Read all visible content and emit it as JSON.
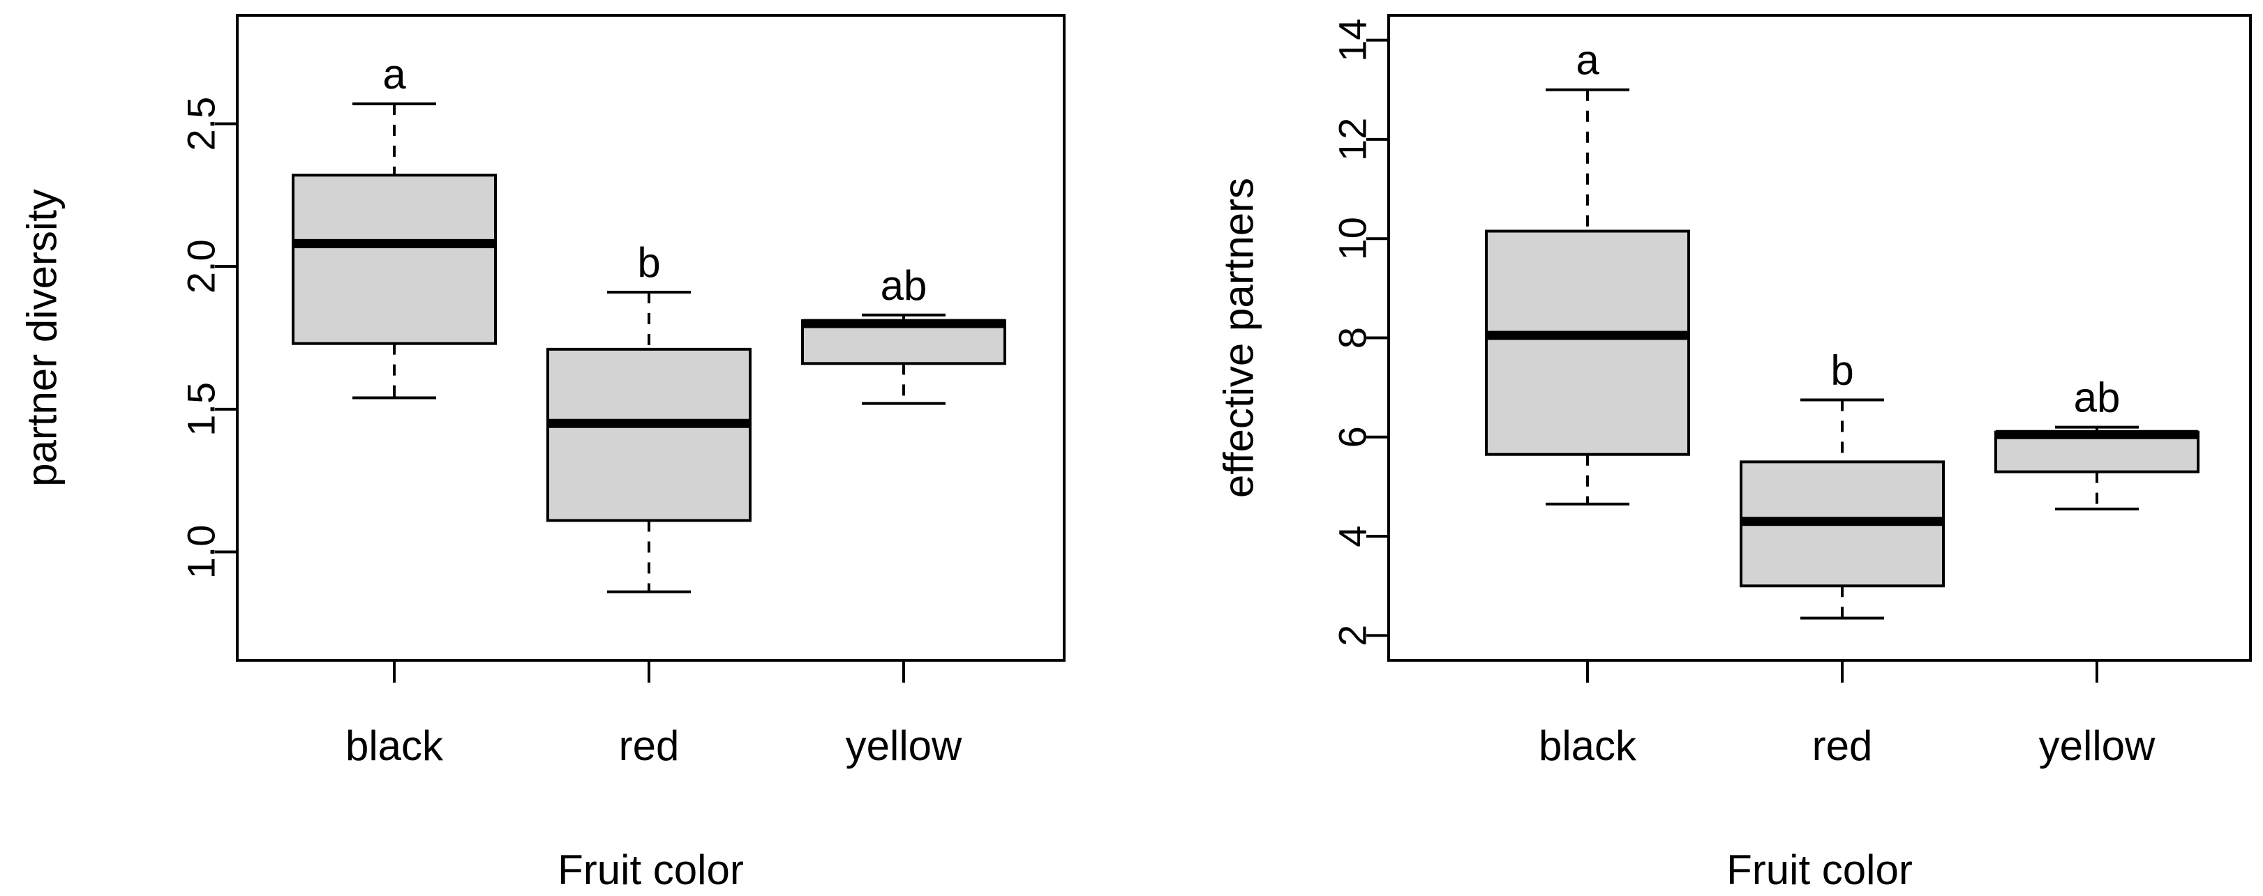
{
  "chart_data": [
    {
      "type": "boxplot",
      "xlabel": "Fruit color",
      "ylabel": "partner diversity",
      "categories": [
        "black",
        "red",
        "yellow"
      ],
      "ylim": [
        0.62,
        2.88
      ],
      "yticks": [
        1.0,
        1.5,
        2.0,
        2.5
      ],
      "ytick_labels": [
        "1.0",
        "1.5",
        "2.0",
        "2.5"
      ],
      "boxes": [
        {
          "category": "black",
          "min": 1.54,
          "q1": 1.73,
          "median": 2.08,
          "q3": 2.32,
          "max": 2.57,
          "group": "a"
        },
        {
          "category": "red",
          "min": 0.86,
          "q1": 1.11,
          "median": 1.45,
          "q3": 1.71,
          "max": 1.91,
          "group": "b"
        },
        {
          "category": "yellow",
          "min": 1.52,
          "q1": 1.66,
          "median": 1.8,
          "q3": 1.81,
          "max": 1.83,
          "group": "ab"
        }
      ]
    },
    {
      "type": "boxplot",
      "xlabel": "Fruit color",
      "ylabel": "effective partners",
      "categories": [
        "black",
        "red",
        "yellow"
      ],
      "ylim": [
        1.5,
        14.5
      ],
      "yticks": [
        2,
        4,
        6,
        8,
        10,
        12,
        14
      ],
      "ytick_labels": [
        "2",
        "4",
        "6",
        "8",
        "10",
        "12",
        "14"
      ],
      "boxes": [
        {
          "category": "black",
          "min": 4.65,
          "q1": 5.65,
          "median": 8.05,
          "q3": 10.15,
          "max": 13.0,
          "group": "a"
        },
        {
          "category": "red",
          "min": 2.35,
          "q1": 3.0,
          "median": 4.3,
          "q3": 5.5,
          "max": 6.75,
          "group": "b"
        },
        {
          "category": "yellow",
          "min": 4.55,
          "q1": 5.3,
          "median": 6.05,
          "q3": 6.1,
          "max": 6.2,
          "group": "ab"
        }
      ]
    }
  ]
}
